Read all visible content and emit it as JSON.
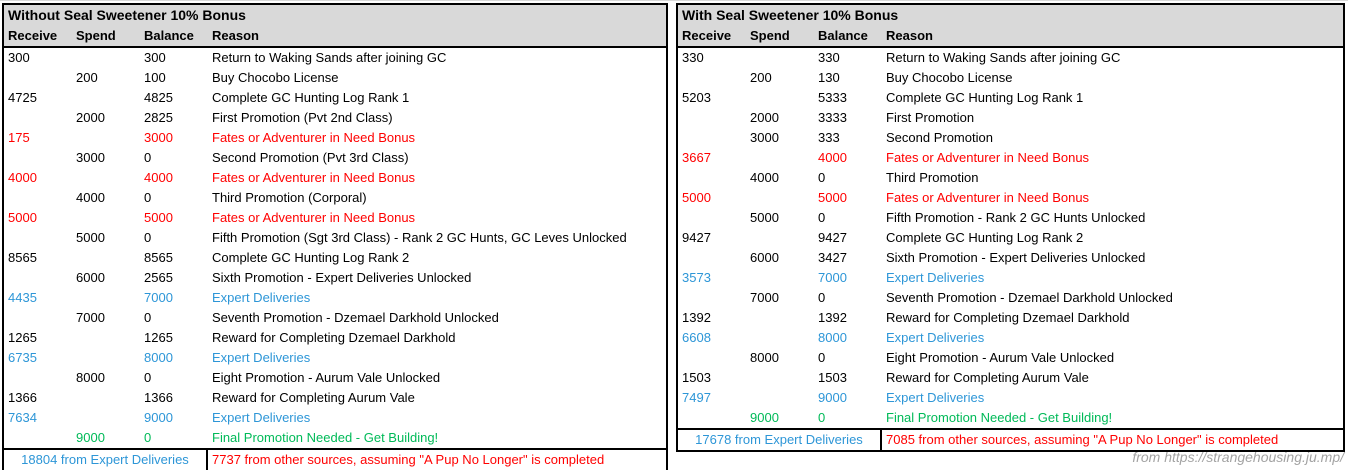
{
  "colors": {
    "red": "#ff0000",
    "blue": "#2d96d7",
    "green": "#00ba58",
    "header_bg": "#d9d9d9",
    "border": "#000000",
    "watermark_gray": "#a3a3a3"
  },
  "tables": [
    {
      "title": "Without Seal Sweetener 10% Bonus",
      "columns": [
        "Receive",
        "Spend",
        "Balance",
        "Reason"
      ],
      "rows": [
        {
          "receive": "300",
          "spend": "",
          "balance": "300",
          "reason": "Return to Waking Sands after joining GC",
          "color": "default"
        },
        {
          "receive": "",
          "spend": "200",
          "balance": "100",
          "reason": "Buy Chocobo License",
          "color": "default"
        },
        {
          "receive": "4725",
          "spend": "",
          "balance": "4825",
          "reason": "Complete GC Hunting Log Rank 1",
          "color": "default"
        },
        {
          "receive": "",
          "spend": "2000",
          "balance": "2825",
          "reason": "First Promotion (Pvt 2nd Class)",
          "color": "default"
        },
        {
          "receive": "175",
          "spend": "",
          "balance": "3000",
          "reason": "Fates or Adventurer in Need Bonus",
          "color": "red"
        },
        {
          "receive": "",
          "spend": "3000",
          "balance": "0",
          "reason": "Second Promotion (Pvt 3rd Class)",
          "color": "default"
        },
        {
          "receive": "4000",
          "spend": "",
          "balance": "4000",
          "reason": "Fates or Adventurer in Need Bonus",
          "color": "red"
        },
        {
          "receive": "",
          "spend": "4000",
          "balance": "0",
          "reason": "Third Promotion (Corporal)",
          "color": "default"
        },
        {
          "receive": "5000",
          "spend": "",
          "balance": "5000",
          "reason": "Fates or Adventurer in Need Bonus",
          "color": "red"
        },
        {
          "receive": "",
          "spend": "5000",
          "balance": "0",
          "reason": "Fifth Promotion (Sgt 3rd Class) - Rank 2 GC Hunts, GC Leves Unlocked",
          "color": "default"
        },
        {
          "receive": "8565",
          "spend": "",
          "balance": "8565",
          "reason": "Complete GC Hunting Log Rank 2",
          "color": "default"
        },
        {
          "receive": "",
          "spend": "6000",
          "balance": "2565",
          "reason": "Sixth Promotion - Expert Deliveries Unlocked",
          "color": "default"
        },
        {
          "receive": "4435",
          "spend": "",
          "balance": "7000",
          "reason": "Expert Deliveries",
          "color": "blue"
        },
        {
          "receive": "",
          "spend": "7000",
          "balance": "0",
          "reason": "Seventh Promotion - Dzemael Darkhold Unlocked",
          "color": "default"
        },
        {
          "receive": "1265",
          "spend": "",
          "balance": "1265",
          "reason": "Reward for Completing Dzemael Darkhold",
          "color": "default"
        },
        {
          "receive": "6735",
          "spend": "",
          "balance": "8000",
          "reason": "Expert Deliveries",
          "color": "blue"
        },
        {
          "receive": "",
          "spend": "8000",
          "balance": "0",
          "reason": "Eight Promotion - Aurum Vale Unlocked",
          "color": "default"
        },
        {
          "receive": "1366",
          "spend": "",
          "balance": "1366",
          "reason": "Reward for Completing Aurum Vale",
          "color": "default"
        },
        {
          "receive": "7634",
          "spend": "",
          "balance": "9000",
          "reason": "Expert Deliveries",
          "color": "blue"
        },
        {
          "receive": "",
          "spend": "9000",
          "balance": "0",
          "reason": "Final Promotion Needed - Get Building!",
          "color": "green"
        }
      ],
      "footer": {
        "left": "18804 from Expert Deliveries",
        "right": "7737 from other sources, assuming \"A Pup No Longer\" is completed"
      }
    },
    {
      "title": "With Seal Sweetener 10% Bonus",
      "columns": [
        "Receive",
        "Spend",
        "Balance",
        "Reason"
      ],
      "rows": [
        {
          "receive": "330",
          "spend": "",
          "balance": "330",
          "reason": "Return to Waking Sands after joining GC",
          "color": "default"
        },
        {
          "receive": "",
          "spend": "200",
          "balance": "130",
          "reason": "Buy Chocobo License",
          "color": "default"
        },
        {
          "receive": "5203",
          "spend": "",
          "balance": "5333",
          "reason": "Complete GC Hunting Log Rank 1",
          "color": "default"
        },
        {
          "receive": "",
          "spend": "2000",
          "balance": "3333",
          "reason": "First Promotion",
          "color": "default"
        },
        {
          "receive": "",
          "spend": "3000",
          "balance": "333",
          "reason": "Second Promotion",
          "color": "default"
        },
        {
          "receive": "3667",
          "spend": "",
          "balance": "4000",
          "reason": "Fates or Adventurer in Need Bonus",
          "color": "red"
        },
        {
          "receive": "",
          "spend": "4000",
          "balance": "0",
          "reason": "Third Promotion",
          "color": "default"
        },
        {
          "receive": "5000",
          "spend": "",
          "balance": "5000",
          "reason": "Fates or Adventurer in Need Bonus",
          "color": "red"
        },
        {
          "receive": "",
          "spend": "5000",
          "balance": "0",
          "reason": "Fifth Promotion - Rank 2 GC Hunts Unlocked",
          "color": "default"
        },
        {
          "receive": "9427",
          "spend": "",
          "balance": "9427",
          "reason": "Complete GC Hunting Log Rank 2",
          "color": "default"
        },
        {
          "receive": "",
          "spend": "6000",
          "balance": "3427",
          "reason": "Sixth Promotion - Expert Deliveries Unlocked",
          "color": "default"
        },
        {
          "receive": "3573",
          "spend": "",
          "balance": "7000",
          "reason": "Expert Deliveries",
          "color": "blue"
        },
        {
          "receive": "",
          "spend": "7000",
          "balance": "0",
          "reason": "Seventh Promotion - Dzemael Darkhold Unlocked",
          "color": "default"
        },
        {
          "receive": "1392",
          "spend": "",
          "balance": "1392",
          "reason": "Reward for Completing Dzemael Darkhold",
          "color": "default"
        },
        {
          "receive": "6608",
          "spend": "",
          "balance": "8000",
          "reason": "Expert Deliveries",
          "color": "blue"
        },
        {
          "receive": "",
          "spend": "8000",
          "balance": "0",
          "reason": "Eight Promotion - Aurum Vale Unlocked",
          "color": "default"
        },
        {
          "receive": "1503",
          "spend": "",
          "balance": "1503",
          "reason": "Reward for Completing Aurum Vale",
          "color": "default"
        },
        {
          "receive": "7497",
          "spend": "",
          "balance": "9000",
          "reason": "Expert Deliveries",
          "color": "blue"
        },
        {
          "receive": "",
          "spend": "9000",
          "balance": "0",
          "reason": "Final Promotion Needed - Get Building!",
          "color": "green"
        }
      ],
      "footer": {
        "left": "17678 from Expert Deliveries",
        "right": "7085 from other sources, assuming \"A Pup No Longer\" is completed"
      }
    }
  ],
  "watermark": "from https://strangehousing.ju.mp/"
}
